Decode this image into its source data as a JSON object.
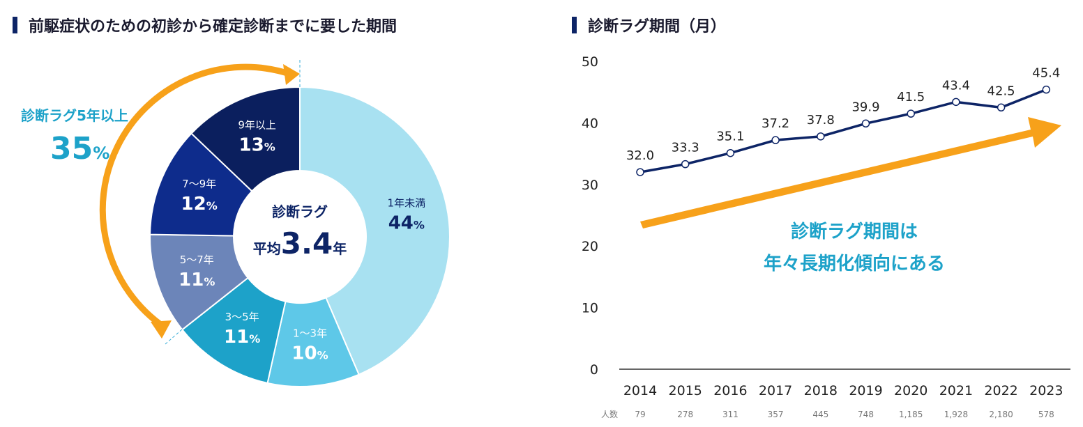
{
  "left_title": "前駆症状のための初診から確定診断までに要した期間",
  "right_title": "診断ラグ期間（月）",
  "callout": {
    "label": "診断ラグ5年以上",
    "value": "35",
    "unit": "%"
  },
  "center": {
    "line1": "診断ラグ",
    "prefix": "平均",
    "value": "3.4",
    "suffix": "年"
  },
  "trend_text": [
    "診断ラグ期間は",
    "年々長期化傾向にある"
  ],
  "count_label": "人数",
  "counts": [
    "79",
    "278",
    "311",
    "357",
    "445",
    "748",
    "1,185",
    "1,928",
    "2,180",
    "578"
  ],
  "chart_data": [
    {
      "type": "pie",
      "slices": [
        {
          "label": "1年未満",
          "value": 44,
          "color": "#a8e1f1",
          "text": "44"
        },
        {
          "label": "1～3年",
          "value": 10,
          "color": "#5ec8e8",
          "text": "10"
        },
        {
          "label": "3～5年",
          "value": 11,
          "color": "#1da2c9",
          "text": "11"
        },
        {
          "label": "5～7年",
          "value": 11,
          "color": "#6c85b9",
          "text": "11"
        },
        {
          "label": "7～9年",
          "value": 12,
          "color": "#0e2c8c",
          "text": "12"
        },
        {
          "label": "9年以上",
          "value": 13,
          "color": "#0b1f5e",
          "text": "13"
        }
      ],
      "unit": "%"
    },
    {
      "type": "line",
      "x": [
        "2014",
        "2015",
        "2016",
        "2017",
        "2018",
        "2019",
        "2020",
        "2021",
        "2022",
        "2023"
      ],
      "values": [
        32.0,
        33.3,
        35.1,
        37.2,
        37.8,
        39.9,
        41.5,
        43.4,
        42.5,
        45.4
      ],
      "labels": [
        "32.0",
        "33.3",
        "35.1",
        "37.2",
        "37.8",
        "39.9",
        "41.5",
        "43.4",
        "42.5",
        "45.4"
      ],
      "yticks": [
        "0",
        "10",
        "20",
        "30",
        "40",
        "50"
      ],
      "ylim": [
        0,
        50
      ],
      "grid": false,
      "line_color": "#0d2466",
      "arrow_color": "#f7a11a"
    }
  ]
}
